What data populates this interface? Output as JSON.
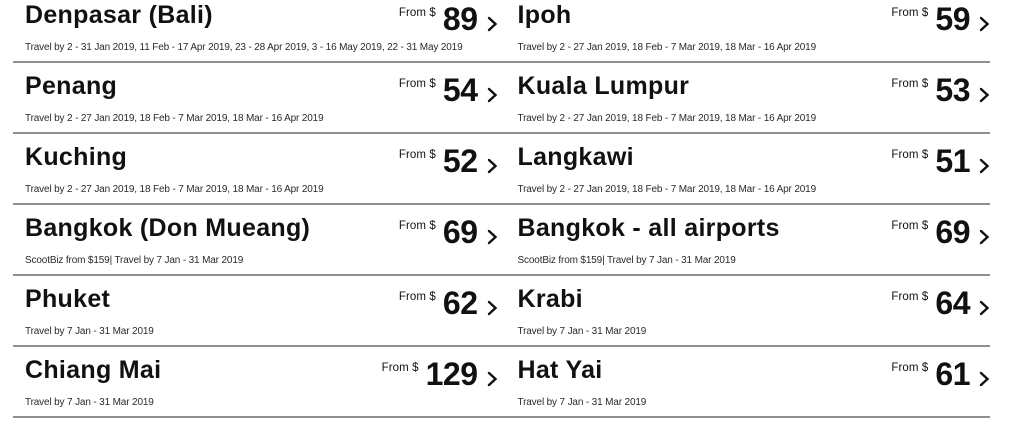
{
  "labels": {
    "from": "From $"
  },
  "colors": {
    "text": "#111111",
    "note_text": "#2a2a2a",
    "divider": "#8f8f8f",
    "background": "#ffffff"
  },
  "destinations": [
    {
      "name": "Denpasar (Bali)",
      "price": "89",
      "note": "Travel by 2 - 31 Jan 2019, 11 Feb - 17 Apr 2019, 23 - 28 Apr 2019, 3 - 16 May 2019, 22 - 31 May 2019"
    },
    {
      "name": "Ipoh",
      "price": "59",
      "note": "Travel by 2 - 27 Jan 2019, 18 Feb - 7 Mar 2019, 18 Mar - 16 Apr 2019"
    },
    {
      "name": "Penang",
      "price": "54",
      "note": "Travel by 2 - 27 Jan 2019, 18 Feb - 7 Mar 2019, 18 Mar - 16 Apr 2019"
    },
    {
      "name": "Kuala Lumpur",
      "price": "53",
      "note": "Travel by 2 - 27 Jan 2019, 18 Feb - 7 Mar 2019, 18 Mar - 16 Apr 2019"
    },
    {
      "name": "Kuching",
      "price": "52",
      "note": "Travel by 2 - 27 Jan 2019, 18 Feb - 7 Mar 2019, 18 Mar - 16 Apr 2019"
    },
    {
      "name": "Langkawi",
      "price": "51",
      "note": "Travel by 2 - 27 Jan 2019, 18 Feb - 7 Mar 2019, 18 Mar - 16 Apr 2019"
    },
    {
      "name": "Bangkok (Don Mueang)",
      "price": "69",
      "note": "ScootBiz from $159| Travel by 7 Jan - 31 Mar 2019"
    },
    {
      "name": "Bangkok - all airports",
      "price": "69",
      "note": "ScootBiz from $159| Travel by 7 Jan - 31 Mar 2019"
    },
    {
      "name": "Phuket",
      "price": "62",
      "note": "Travel by 7 Jan - 31 Mar 2019"
    },
    {
      "name": "Krabi",
      "price": "64",
      "note": "Travel by 7 Jan - 31 Mar 2019"
    },
    {
      "name": "Chiang Mai",
      "price": "129",
      "note": "Travel by 7 Jan - 31 Mar 2019"
    },
    {
      "name": "Hat Yai",
      "price": "61",
      "note": "Travel by 7 Jan - 31 Mar 2019"
    }
  ]
}
